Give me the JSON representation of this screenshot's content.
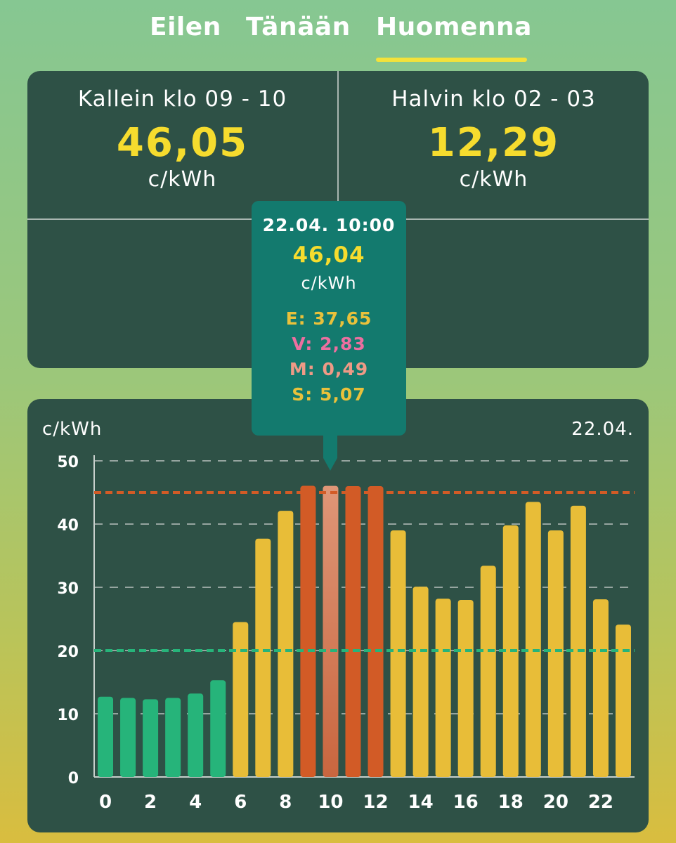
{
  "tabs": [
    {
      "label": "Eilen"
    },
    {
      "label": "Tänään"
    },
    {
      "label": "Huomenna"
    }
  ],
  "summary": {
    "most_expensive": {
      "label": "Kallein klo 09 - 10",
      "value": "46,05",
      "unit": "c/kWh"
    },
    "cheapest": {
      "label": "Halvin klo 02 - 03",
      "value": "12,29",
      "unit": "c/kWh"
    }
  },
  "tooltip": {
    "datetime": "22.04. 10:00",
    "price": "46,04",
    "unit": "c/kWh",
    "energy": "E: 37,65",
    "transfer": "V: 2,83",
    "margin": "M: 0,49",
    "tax": "S: 5,07"
  },
  "colors": {
    "cheap": "#26b47a",
    "normal": "#e8bd38",
    "expensive": "#d25b26",
    "selected": "#df9677",
    "high_line": "#d25b26",
    "low_line": "#26b47a",
    "accent": "#f6dc2e"
  },
  "chart_data": {
    "type": "bar",
    "title": "",
    "ylabel": "c/kWh",
    "date_label": "22.04.",
    "xlabel": "",
    "ylim": [
      0,
      50
    ],
    "yticks": [
      0,
      10,
      20,
      30,
      40,
      50
    ],
    "categories": [
      0,
      1,
      2,
      3,
      4,
      5,
      6,
      7,
      8,
      9,
      10,
      11,
      12,
      13,
      14,
      15,
      16,
      17,
      18,
      19,
      20,
      21,
      22,
      23
    ],
    "xtick_labels": [
      "0",
      "2",
      "4",
      "6",
      "8",
      "10",
      "12",
      "14",
      "16",
      "18",
      "20",
      "22"
    ],
    "values": [
      12.7,
      12.5,
      12.29,
      12.5,
      13.2,
      15.3,
      24.5,
      37.7,
      42.1,
      46.05,
      46.04,
      46.0,
      46.0,
      39.0,
      30.1,
      28.2,
      28.0,
      33.4,
      39.8,
      43.5,
      39.0,
      42.9,
      28.1,
      24.1
    ],
    "levels": [
      "cheap",
      "cheap",
      "cheap",
      "cheap",
      "cheap",
      "cheap",
      "normal",
      "normal",
      "normal",
      "expensive",
      "expensive",
      "expensive",
      "expensive",
      "normal",
      "normal",
      "normal",
      "normal",
      "normal",
      "normal",
      "normal",
      "normal",
      "normal",
      "normal",
      "normal"
    ],
    "selected_index": 10,
    "reference_lines": [
      {
        "name": "high-threshold",
        "value": 45,
        "color": "#d25b26"
      },
      {
        "name": "low-threshold",
        "value": 20,
        "color": "#26b47a"
      }
    ],
    "grid": true,
    "legend": "none"
  }
}
